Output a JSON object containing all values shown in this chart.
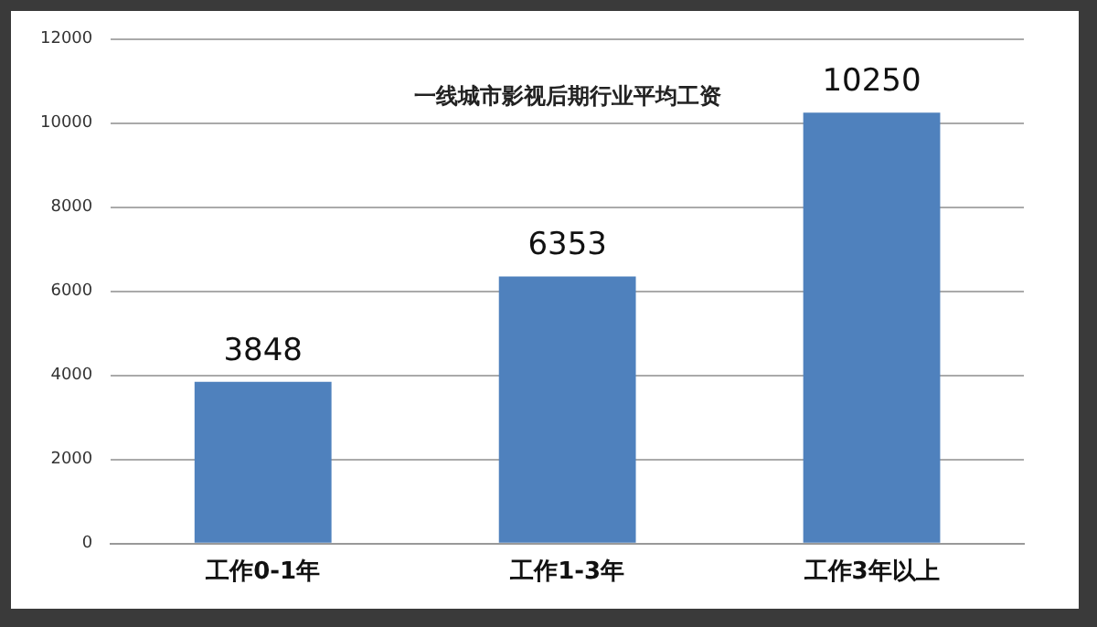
{
  "chart_data": {
    "type": "bar",
    "title": "一线城市影视后期行业平均工资",
    "categories": [
      "工作0-1年",
      "工作1-3年",
      "工作3年以上"
    ],
    "values": [
      3848,
      6353,
      10250
    ],
    "color": "#4f81bd",
    "ylim": [
      0,
      12000
    ],
    "yticks": [
      0,
      2000,
      4000,
      6000,
      8000,
      10000,
      12000
    ],
    "grid": "y",
    "data_labels": true
  }
}
